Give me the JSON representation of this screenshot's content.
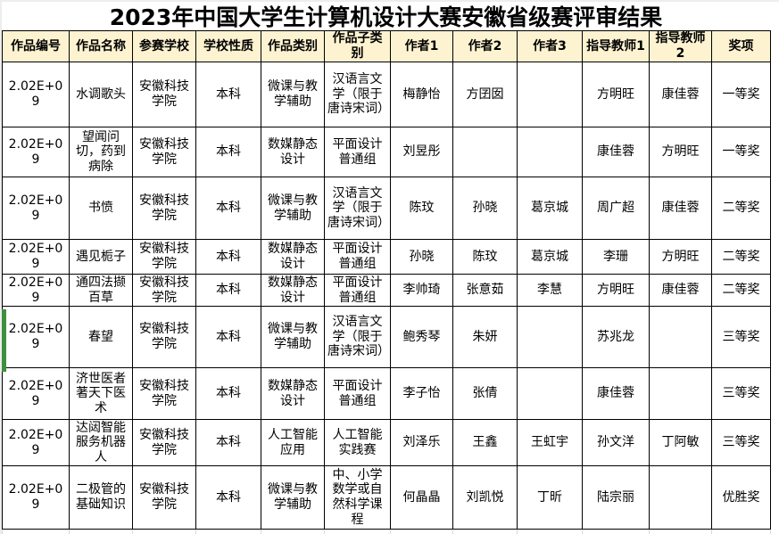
{
  "title": "2023年中国大学生计算机设计大赛安徽省级赛评审结果",
  "colors": {
    "header_bg": "#fdf3d1",
    "selection_green": "#3f8f3f",
    "gridline_gray": "#d9d9d9",
    "cell_border": "#000000"
  },
  "table": {
    "columns": [
      "作品编号",
      "作品名称",
      "参赛学校",
      "学校性质",
      "作品类别",
      "作品子类别",
      "作者1",
      "作者2",
      "作者3",
      "指导教师1",
      "指导教师2",
      "奖项"
    ],
    "rows": [
      {
        "cells": [
          "2.02E+09",
          "水调歌头",
          "安徽科技学院",
          "本科",
          "微课与教学辅助",
          "汉语言文学（限于唐诗宋词）",
          "梅静怡",
          "方囝囡",
          "",
          "方明旺",
          "康佳蓉",
          "一等奖"
        ]
      },
      {
        "cells": [
          "2.02E+09",
          "望闻问切，药到病除",
          "安徽科技学院",
          "本科",
          "数媒静态设计",
          "平面设计普通组",
          "刘昱彤",
          "",
          "",
          "康佳蓉",
          "方明旺",
          "一等奖"
        ]
      },
      {
        "cells": [
          "2.02E+09",
          "书愤",
          "安徽科技学院",
          "本科",
          "微课与教学辅助",
          "汉语言文学（限于唐诗宋词）",
          "陈玟",
          "孙晓",
          "葛京城",
          "周广超",
          "康佳蓉",
          "二等奖"
        ]
      },
      {
        "cells": [
          "2.02E+09",
          "遇见栀子",
          "安徽科技学院",
          "本科",
          "数媒静态设计",
          "平面设计普通组",
          "孙晓",
          "陈玟",
          "葛京城",
          "李珊",
          "方明旺",
          "二等奖"
        ]
      },
      {
        "cells": [
          "2.02E+09",
          "通四法撷百草",
          "安徽科技学院",
          "本科",
          "数媒静态设计",
          "平面设计普通组",
          "李帅琦",
          "张意茹",
          "李慧",
          "方明旺",
          "康佳蓉",
          "二等奖"
        ]
      },
      {
        "cells": [
          "2.02E+09",
          "春望",
          "安徽科技学院",
          "本科",
          "微课与教学辅助",
          "汉语言文学（限于唐诗宋词）",
          "鲍秀琴",
          "朱妍",
          "",
          "苏兆龙",
          "",
          "三等奖"
        ]
      },
      {
        "cells": [
          "2.02E+09",
          "济世医者著天下医术",
          "安徽科技学院",
          "本科",
          "数媒静态设计",
          "平面设计普通组",
          "李子怡",
          "张倩",
          "",
          "康佳蓉",
          "",
          "三等奖"
        ]
      },
      {
        "cells": [
          "2.02E+09",
          "达闼智能服务机器人",
          "安徽科技学院",
          "本科",
          "人工智能应用",
          "人工智能实践赛",
          "刘泽乐",
          "王鑫",
          "王虹宇",
          "孙文洋",
          "丁阿敏",
          "三等奖"
        ]
      },
      {
        "cells": [
          "2.02E+09",
          "二极管的基础知识",
          "安徽科技学院",
          "本科",
          "微课与教学辅助",
          "中、小学数学或自然科学课程",
          "何晶晶",
          "刘凯悦",
          "丁昕",
          "陆宗丽",
          "",
          "优胜奖"
        ]
      }
    ]
  }
}
